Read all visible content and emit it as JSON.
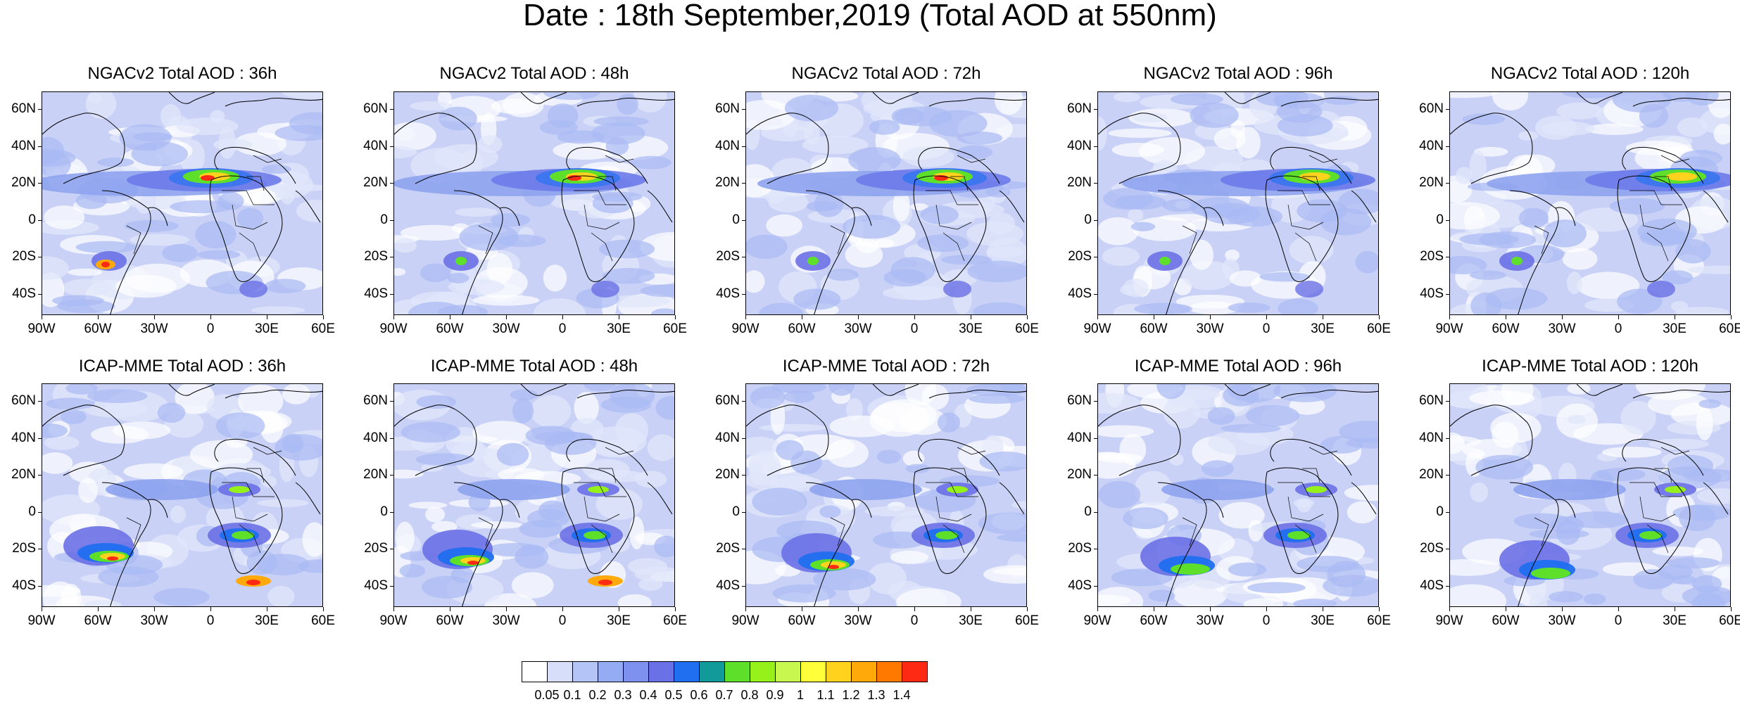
{
  "title": "Date : 18th September,2019 (Total AOD at 550nm)",
  "lat_labels": [
    "60N",
    "40N",
    "20N",
    "0",
    "20S",
    "40S"
  ],
  "lon_labels": [
    "90W",
    "60W",
    "30W",
    "0",
    "30E",
    "60E"
  ],
  "rows": [
    {
      "panels": [
        {
          "title": "NGACv2 Total AOD : 36h"
        },
        {
          "title": "NGACv2 Total AOD : 48h"
        },
        {
          "title": "NGACv2 Total AOD : 72h"
        },
        {
          "title": "NGACv2 Total AOD : 96h"
        },
        {
          "title": "NGACv2 Total AOD : 120h"
        }
      ]
    },
    {
      "panels": [
        {
          "title": "ICAP-MME Total AOD : 36h"
        },
        {
          "title": "ICAP-MME Total AOD : 48h"
        },
        {
          "title": "ICAP-MME Total AOD : 72h"
        },
        {
          "title": "ICAP-MME Total AOD : 96h"
        },
        {
          "title": "ICAP-MME Total AOD : 120h"
        }
      ]
    }
  ],
  "colorbar": {
    "colors": [
      "#ffffff",
      "#d6defa",
      "#b4c4f6",
      "#94acf3",
      "#7e91ee",
      "#6a70e6",
      "#1f6ff0",
      "#129a9a",
      "#5ee02a",
      "#96f01a",
      "#c8f850",
      "#ffff3a",
      "#ffd21e",
      "#ffaa0a",
      "#ff7800",
      "#ff2a14"
    ],
    "labels": [
      "0.05",
      "0.1",
      "0.2",
      "0.3",
      "0.4",
      "0.5",
      "0.6",
      "0.7",
      "0.8",
      "0.9",
      "1",
      "1.1",
      "1.2",
      "1.3",
      "1.4"
    ]
  }
}
